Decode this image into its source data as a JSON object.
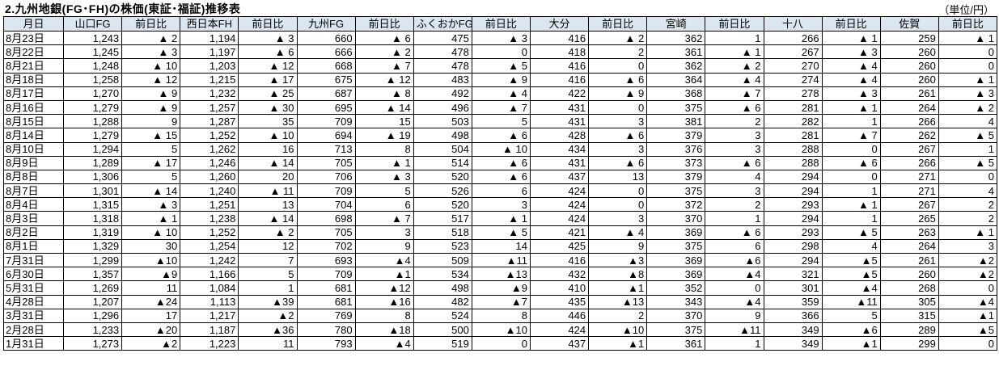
{
  "title": "2.九州地銀(FG･FH)の株価(東証･福証)推移表",
  "unit": "（単位/円）",
  "header_color": "#dce6f1",
  "columns": [
    "月日",
    "山口FG",
    "前日比",
    "西日本FH",
    "前日比",
    "九州FG",
    "前日比",
    "ふくおかFG",
    "前日比",
    "大分",
    "前日比",
    "宮崎",
    "前日比",
    "十八",
    "前日比",
    "佐賀",
    "前日比"
  ],
  "rows": [
    [
      "8月23日",
      "1,243",
      "▲ 2",
      "1,194",
      "▲ 3",
      "660",
      "▲ 6",
      "475",
      "▲ 3",
      "416",
      "▲ 2",
      "362",
      "1",
      "266",
      "▲ 1",
      "259",
      "▲ 1"
    ],
    [
      "8月22日",
      "1,245",
      "▲ 3",
      "1,197",
      "▲ 6",
      "666",
      "▲ 2",
      "478",
      "0",
      "418",
      "2",
      "361",
      "▲ 1",
      "267",
      "▲ 3",
      "260",
      "0"
    ],
    [
      "8月21日",
      "1,248",
      "▲ 10",
      "1,203",
      "▲ 12",
      "668",
      "▲ 7",
      "478",
      "▲ 5",
      "416",
      "0",
      "362",
      "▲ 2",
      "270",
      "▲ 4",
      "260",
      "0"
    ],
    [
      "8月18日",
      "1,258",
      "▲ 12",
      "1,215",
      "▲ 17",
      "675",
      "▲ 12",
      "483",
      "▲ 9",
      "416",
      "▲ 6",
      "364",
      "▲ 4",
      "274",
      "▲ 4",
      "260",
      "▲ 1"
    ],
    [
      "8月17日",
      "1,270",
      "▲ 9",
      "1,232",
      "▲ 25",
      "687",
      "▲ 8",
      "492",
      "▲ 4",
      "422",
      "▲ 9",
      "368",
      "▲ 7",
      "278",
      "▲ 3",
      "261",
      "▲ 3"
    ],
    [
      "8月16日",
      "1,279",
      "▲ 9",
      "1,257",
      "▲ 30",
      "695",
      "▲ 14",
      "496",
      "▲ 7",
      "431",
      "0",
      "375",
      "▲ 6",
      "281",
      "▲ 1",
      "264",
      "▲ 2"
    ],
    [
      "8月15日",
      "1,288",
      "9",
      "1,287",
      "35",
      "709",
      "15",
      "503",
      "5",
      "431",
      "3",
      "381",
      "2",
      "282",
      "1",
      "266",
      "4"
    ],
    [
      "8月14日",
      "1,279",
      "▲ 15",
      "1,252",
      "▲ 10",
      "694",
      "▲ 19",
      "498",
      "▲ 6",
      "428",
      "▲ 6",
      "379",
      "3",
      "281",
      "▲ 7",
      "262",
      "▲ 5"
    ],
    [
      "8月10日",
      "1,294",
      "5",
      "1,262",
      "16",
      "713",
      "8",
      "504",
      "▲ 10",
      "434",
      "3",
      "376",
      "3",
      "288",
      "0",
      "267",
      "1"
    ],
    [
      "8月9日",
      "1,289",
      "▲ 17",
      "1,246",
      "▲ 14",
      "705",
      "▲ 1",
      "514",
      "▲ 6",
      "431",
      "▲ 6",
      "373",
      "▲ 6",
      "288",
      "▲ 6",
      "266",
      "▲ 5"
    ],
    [
      "8月8日",
      "1,306",
      "5",
      "1,260",
      "20",
      "706",
      "▲ 3",
      "520",
      "▲ 6",
      "437",
      "13",
      "379",
      "4",
      "294",
      "0",
      "271",
      "0"
    ],
    [
      "8月7日",
      "1,301",
      "▲ 14",
      "1,240",
      "▲ 11",
      "709",
      "5",
      "526",
      "6",
      "424",
      "0",
      "375",
      "3",
      "294",
      "1",
      "271",
      "4"
    ],
    [
      "8月4日",
      "1,315",
      "▲ 3",
      "1,251",
      "13",
      "704",
      "6",
      "520",
      "3",
      "424",
      "0",
      "372",
      "2",
      "293",
      "▲ 1",
      "267",
      "2"
    ],
    [
      "8月3日",
      "1,318",
      "▲ 1",
      "1,238",
      "▲ 14",
      "698",
      "▲ 7",
      "517",
      "▲ 1",
      "424",
      "3",
      "370",
      "1",
      "294",
      "1",
      "265",
      "2"
    ],
    [
      "8月2日",
      "1,319",
      "▲ 10",
      "1,252",
      "▲ 2",
      "705",
      "3",
      "518",
      "▲ 5",
      "421",
      "▲ 4",
      "369",
      "▲ 6",
      "293",
      "▲ 5",
      "263",
      "▲ 1"
    ],
    [
      "8月1日",
      "1,329",
      "30",
      "1,254",
      "12",
      "702",
      "9",
      "523",
      "14",
      "425",
      "9",
      "375",
      "6",
      "298",
      "4",
      "264",
      "3"
    ],
    [
      "7月31日",
      "1,299",
      "▲10",
      "1,242",
      "7",
      "693",
      "▲4",
      "509",
      "▲11",
      "416",
      "▲3",
      "369",
      "▲6",
      "294",
      "▲5",
      "261",
      "▲2"
    ],
    [
      "6月30日",
      "1,357",
      "▲9",
      "1,166",
      "5",
      "709",
      "▲1",
      "534",
      "▲13",
      "432",
      "▲8",
      "369",
      "▲4",
      "321",
      "▲5",
      "260",
      "▲2"
    ],
    [
      "5月31日",
      "1,269",
      "11",
      "1,084",
      "1",
      "681",
      "▲12",
      "498",
      "▲9",
      "410",
      "▲1",
      "352",
      "0",
      "301",
      "▲4",
      "268",
      "0"
    ],
    [
      "4月28日",
      "1,207",
      "▲24",
      "1,113",
      "▲39",
      "681",
      "▲16",
      "482",
      "▲7",
      "435",
      "▲13",
      "343",
      "▲4",
      "359",
      "▲11",
      "305",
      "▲4"
    ],
    [
      "3月31日",
      "1,296",
      "17",
      "1,217",
      "▲2",
      "769",
      "8",
      "524",
      "8",
      "446",
      "2",
      "370",
      "9",
      "366",
      "5",
      "315",
      "▲1"
    ],
    [
      "2月28日",
      "1,233",
      "▲20",
      "1,187",
      "▲36",
      "780",
      "▲18",
      "500",
      "▲10",
      "424",
      "▲10",
      "375",
      "▲11",
      "349",
      "▲6",
      "289",
      "▲5"
    ],
    [
      "1月31日",
      "1,273",
      "▲2",
      "1,223",
      "11",
      "793",
      "▲4",
      "519",
      "0",
      "437",
      "▲1",
      "361",
      "1",
      "349",
      "▲1",
      "299",
      "0"
    ]
  ]
}
